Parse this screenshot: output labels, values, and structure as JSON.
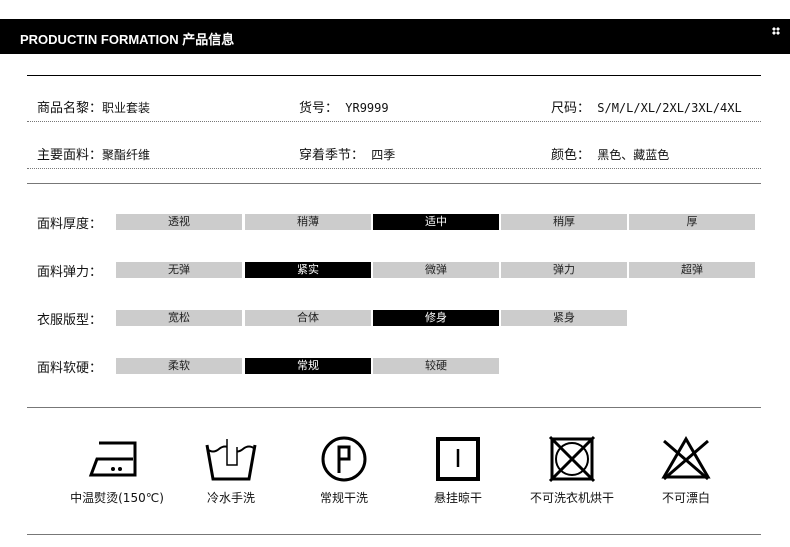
{
  "header": {
    "title": "PRODUCTIN FORMATION  产品信息"
  },
  "info": [
    [
      {
        "k": "商品名黎：",
        "v": "职业套装"
      },
      {
        "k": "货号：",
        "v": " YR9999"
      },
      {
        "k": "尺码：",
        "v": " S/M/L/XL/2XL/3XL/4XL"
      }
    ],
    [
      {
        "k": "主要面料：",
        "v": "聚酯纤维"
      },
      {
        "k": "穿着季节：",
        "v": " 四季"
      },
      {
        "k": "颜色：",
        "v": " 黑色、藏蓝色"
      }
    ]
  ],
  "attributes": [
    {
      "label": "面料厚度：",
      "options": [
        "透视",
        "稍薄",
        "适中",
        "稍厚",
        "厚"
      ],
      "selected": 2
    },
    {
      "label": "面料弹力：",
      "options": [
        "无弹",
        "紧实",
        "微弹",
        "弹力",
        "超弹"
      ],
      "selected": 1
    },
    {
      "label": "衣服版型：",
      "options": [
        "宽松",
        "合体",
        "修身",
        "紧身"
      ],
      "selected": 2
    },
    {
      "label": "面料软硬：",
      "options": [
        "柔软",
        "常规",
        "较硬"
      ],
      "selected": 1
    }
  ],
  "care": [
    {
      "icon": "iron-medium-icon",
      "label": "中温熨烫(150℃)"
    },
    {
      "icon": "hand-wash-icon",
      "label": "冷水手洗"
    },
    {
      "icon": "dry-clean-p-icon",
      "label": "常规干洗"
    },
    {
      "icon": "line-dry-icon",
      "label": "悬挂晾干"
    },
    {
      "icon": "no-tumble-dry-icon",
      "label": "不可洗衣机烘干"
    },
    {
      "icon": "no-bleach-icon",
      "label": "不可漂白"
    }
  ],
  "colors": {
    "selected": "#000000",
    "unselected": "#cccccc"
  }
}
